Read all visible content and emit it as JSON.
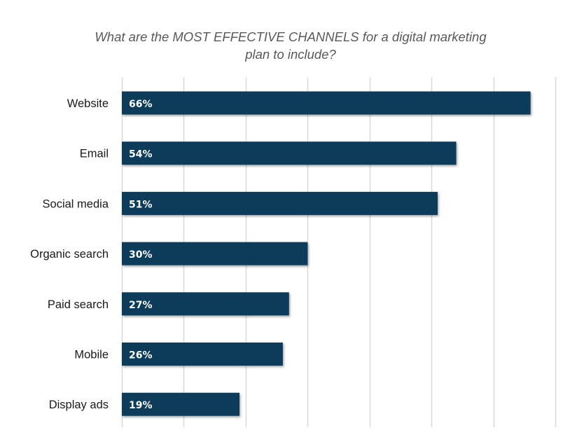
{
  "chart_data": {
    "type": "bar",
    "orientation": "horizontal",
    "title": "What are the MOST EFFECTIVE CHANNELS for a digital marketing plan to include?",
    "title_lines": [
      "What are the MOST EFFECTIVE CHANNELS for a digital marketing",
      "plan to include?"
    ],
    "categories": [
      "Website",
      "Email",
      "Social media",
      "Organic search",
      "Paid search",
      "Mobile",
      "Display ads"
    ],
    "values": [
      66,
      54,
      51,
      30,
      27,
      26,
      19
    ],
    "value_labels": [
      "66%",
      "54%",
      "51%",
      "30%",
      "27%",
      "26%",
      "19%"
    ],
    "xlabel": "",
    "ylabel": "",
    "xlim": [
      0,
      70
    ],
    "grid": true,
    "grid_step": 10,
    "legend": "none",
    "bar_color": "#0b3a5a",
    "grid_color": "#d9d9d9"
  }
}
